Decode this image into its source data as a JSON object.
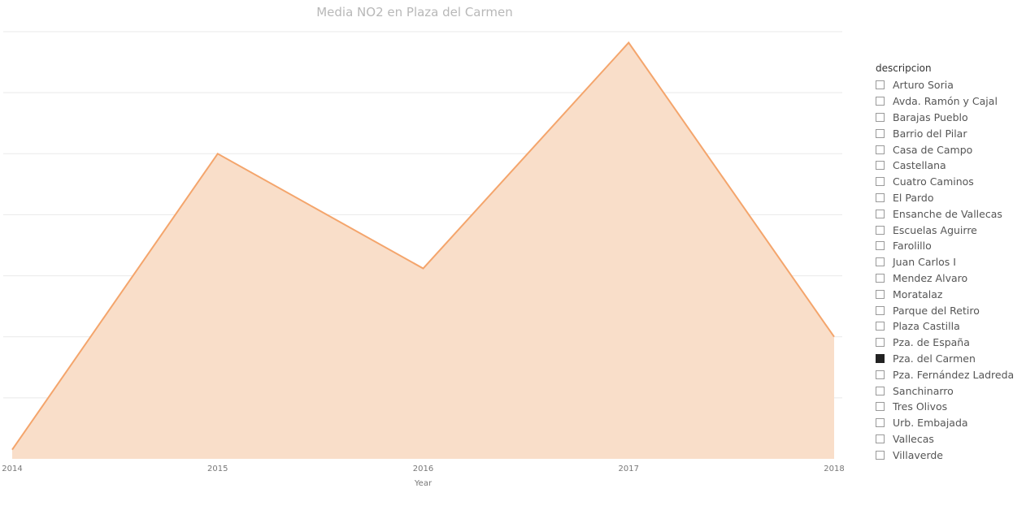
{
  "chart_data": {
    "type": "area",
    "title": "Media NO2 en Plaza del Carmen",
    "xlabel": "Year",
    "ylabel": "",
    "x": [
      2014,
      2015,
      2016,
      2017,
      2018
    ],
    "series": [
      {
        "values": [
          1.5,
          50.0,
          31.2,
          68.2,
          20.0
        ]
      }
    ],
    "ylim": [
      0,
      70
    ],
    "grid": true,
    "colors": {
      "line": "#f4a56c",
      "fill": "#f9dec9",
      "grid": "#e9e9e9"
    }
  },
  "legend": {
    "title": "descripcion",
    "items": [
      {
        "label": "Arturo Soria",
        "checked": false
      },
      {
        "label": "Avda. Ramón y Cajal",
        "checked": false
      },
      {
        "label": "Barajas Pueblo",
        "checked": false
      },
      {
        "label": "Barrio del Pilar",
        "checked": false
      },
      {
        "label": "Casa de Campo",
        "checked": false
      },
      {
        "label": "Castellana",
        "checked": false
      },
      {
        "label": "Cuatro Caminos",
        "checked": false
      },
      {
        "label": "El Pardo",
        "checked": false
      },
      {
        "label": "Ensanche de Vallecas",
        "checked": false
      },
      {
        "label": "Escuelas Aguirre",
        "checked": false
      },
      {
        "label": "Farolillo",
        "checked": false
      },
      {
        "label": "Juan Carlos I",
        "checked": false
      },
      {
        "label": "Mendez Alvaro",
        "checked": false
      },
      {
        "label": "Moratalaz",
        "checked": false
      },
      {
        "label": "Parque del Retiro",
        "checked": false
      },
      {
        "label": "Plaza Castilla",
        "checked": false
      },
      {
        "label": "Pza. de España",
        "checked": false
      },
      {
        "label": "Pza. del Carmen",
        "checked": true
      },
      {
        "label": "Pza. Fernández Ladreda",
        "checked": false
      },
      {
        "label": "Sanchinarro",
        "checked": false
      },
      {
        "label": "Tres Olivos",
        "checked": false
      },
      {
        "label": "Urb. Embajada",
        "checked": false
      },
      {
        "label": "Vallecas",
        "checked": false
      },
      {
        "label": "Villaverde",
        "checked": false
      }
    ]
  }
}
